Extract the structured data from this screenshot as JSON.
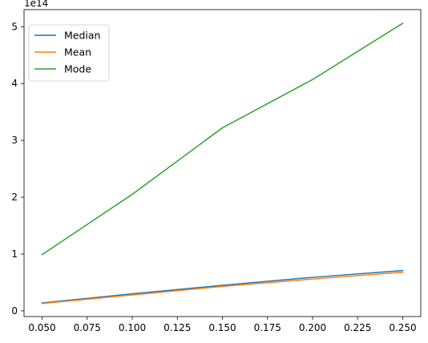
{
  "chart_data": {
    "type": "line",
    "title": "",
    "xlabel": "",
    "ylabel": "",
    "x": [
      0.05,
      0.1,
      0.15,
      0.2,
      0.25
    ],
    "xlim": [
      0.04,
      0.26
    ],
    "ylim": [
      -0.1,
      5.3
    ],
    "y_scale_label": "1e14",
    "x_ticks": [
      "0.050",
      "0.075",
      "0.100",
      "0.125",
      "0.150",
      "0.175",
      "0.200",
      "0.225",
      "0.250"
    ],
    "y_ticks": [
      "0",
      "1",
      "2",
      "3",
      "4",
      "5"
    ],
    "grid": false,
    "legend_position": "top-left",
    "series": [
      {
        "name": "Median",
        "color": "#1f77b4",
        "values": [
          0.14,
          0.3,
          0.45,
          0.59,
          0.71
        ]
      },
      {
        "name": "Mean",
        "color": "#ff7f0e",
        "values": [
          0.13,
          0.28,
          0.43,
          0.56,
          0.68
        ]
      },
      {
        "name": "Mode",
        "color": "#2ca02c",
        "values": [
          0.99,
          2.05,
          3.22,
          4.07,
          5.06
        ]
      }
    ]
  }
}
